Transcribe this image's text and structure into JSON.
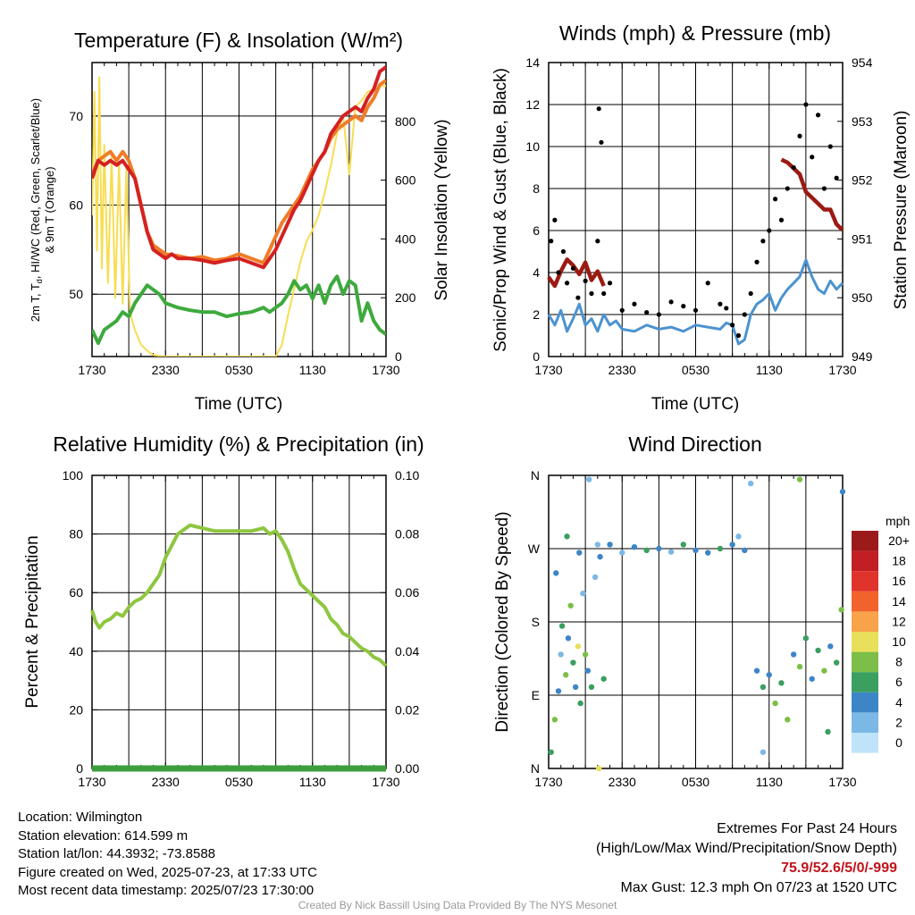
{
  "colors": {
    "temp": "#d42121",
    "dewpoint": "#3daa3d",
    "temp9m": "#f07c28",
    "solar": "#f7dd52",
    "wind": "#4b93d0",
    "gust": "#000000",
    "pressure": "#9b1a12",
    "rh": "#8ec63f",
    "precip": "#3e9e3e"
  },
  "panels": {
    "temp": {
      "title": "Temperature (F) & Insolation (W/m²)",
      "ylabel_left_1": "2m T, T",
      "ylabel_left_sub": "d",
      "ylabel_left_2": ", HI/WC (Red, Green, Scarlet/Blue)",
      "ylabel_left_3": "& 9m T (Orange)",
      "ylabel_right": "Solar Insolation (Yellow)",
      "xlabel": "Time (UTC)",
      "yticks_left": [
        "50",
        "60",
        "70"
      ],
      "yticks_right": [
        "0",
        "200",
        "400",
        "600",
        "800"
      ]
    },
    "wind": {
      "title": "Winds (mph) & Pressure (mb)",
      "ylabel_left": "Sonic/Prop Wind & Gust (Blue, Black)",
      "ylabel_right": "Station Pressure (Maroon)",
      "xlabel": "Time (UTC)",
      "yticks_left": [
        "0",
        "2",
        "4",
        "6",
        "8",
        "10",
        "12",
        "14"
      ],
      "yticks_right": [
        "949",
        "950",
        "951",
        "952",
        "953",
        "954"
      ]
    },
    "rh": {
      "title": "Relative Humidity (%) & Precipitation (in)",
      "ylabel_left": "Percent & Precipitation",
      "yticks_left": [
        "0",
        "20",
        "40",
        "60",
        "80",
        "100"
      ],
      "yticks_right": [
        "0.00",
        "0.02",
        "0.04",
        "0.06",
        "0.08",
        "0.10"
      ]
    },
    "dir": {
      "title": "Wind Direction",
      "ylabel_left": "Direction (Colored By Speed)",
      "yticks_left": [
        "N",
        "E",
        "S",
        "W",
        "N"
      ],
      "legend_title": "mph",
      "legend_labels": [
        "20+",
        "18",
        "16",
        "14",
        "12",
        "10",
        "8",
        "6",
        "4",
        "2",
        "0"
      ],
      "legend_colors": [
        "#9b1a1a",
        "#c21f25",
        "#e0332b",
        "#f1622d",
        "#f8a24a",
        "#e8e05a",
        "#7cbe47",
        "#3a9f5f",
        "#3d85c6",
        "#7cb8e6",
        "#bfe3f8"
      ]
    }
  },
  "xticks": [
    "1730",
    "2330",
    "0530",
    "1130",
    "1730"
  ],
  "info": {
    "location": "Location: Wilmington",
    "elevation": "Station elevation: 614.599 m",
    "latlon": "Station lat/lon: 44.3932; -73.8588",
    "created": "Figure created on Wed, 2025-07-23, at 17:33 UTC",
    "recent": "Most recent data timestamp: 2025/07/23 17:30:00"
  },
  "extremes": {
    "line1": "Extremes For Past 24 Hours",
    "line2": "(High/Low/Max Wind/Precipitation/Snow Depth)",
    "values": "75.9/52.6/5/0/-999",
    "gust": "Max Gust: 12.3 mph On 07/23 at 1520 UTC"
  },
  "credit": "Created By Nick Bassill Using Data Provided By The NYS Mesonet",
  "chart_data": [
    {
      "type": "line",
      "x_unit": "hours since 1730 UTC",
      "xlim": [
        0,
        24
      ],
      "ylim": [
        43,
        76
      ],
      "ylim_right": [
        0,
        1000
      ],
      "series": [
        {
          "key": "temp",
          "x": [
            0,
            0.5,
            1,
            1.5,
            2,
            2.5,
            3,
            3.5,
            4,
            4.5,
            5,
            5.5,
            6,
            6.5,
            7,
            8,
            9,
            10,
            11,
            12,
            13,
            14,
            14.5,
            15,
            15.5,
            16,
            16.5,
            17,
            17.5,
            18,
            18.5,
            19,
            19.5,
            20,
            20.5,
            21,
            21.5,
            22,
            22.5,
            23,
            23.5,
            24
          ],
          "y": [
            63,
            65,
            64.5,
            65,
            64.5,
            65,
            64,
            63,
            60,
            57,
            55,
            54.5,
            54,
            54.5,
            54,
            54,
            53.8,
            53.5,
            53.8,
            54,
            53.5,
            53,
            54,
            55,
            56.5,
            58,
            59.5,
            60.5,
            62,
            63.5,
            65,
            66,
            68,
            69,
            70,
            70.5,
            71,
            70.5,
            72,
            73,
            75,
            75.5
          ]
        },
        {
          "key": "temp9m",
          "x": [
            0,
            0.5,
            1,
            1.5,
            2,
            2.5,
            3,
            3.5,
            4,
            4.5,
            5,
            5.5,
            6,
            7,
            8,
            9,
            10,
            11,
            12,
            13,
            14,
            14.5,
            15,
            15.5,
            16,
            16.5,
            17,
            17.5,
            18,
            18.5,
            19,
            19.5,
            20,
            20.5,
            21,
            21.5,
            22,
            22.5,
            23,
            23.5,
            24
          ],
          "y": [
            63.5,
            65,
            65.5,
            66,
            65,
            66,
            65,
            63,
            60,
            57,
            55.5,
            55,
            54.5,
            54.3,
            54,
            54.2,
            53.8,
            54,
            54.5,
            54,
            53.5,
            55,
            56.5,
            58,
            59,
            60,
            61,
            62.5,
            64,
            65,
            66,
            67.5,
            68.5,
            69,
            69.5,
            70,
            69.5,
            71,
            72,
            73.5,
            74
          ]
        },
        {
          "key": "dewpoint",
          "x": [
            0,
            0.5,
            1,
            1.5,
            2,
            2.5,
            3,
            3.5,
            4,
            4.5,
            5,
            5.5,
            6,
            7,
            8,
            9,
            10,
            11,
            12,
            13,
            14,
            14.5,
            15,
            15.5,
            16,
            16.5,
            17,
            17.5,
            18,
            18.5,
            19,
            19.5,
            20,
            20.5,
            21,
            21.5,
            22,
            22.5,
            23,
            23.5,
            24
          ],
          "y": [
            46,
            44.5,
            46,
            46.5,
            47,
            48,
            47.5,
            49,
            50,
            51,
            50.5,
            50,
            49,
            48.5,
            48.2,
            48,
            48,
            47.5,
            47.8,
            48,
            48.5,
            48,
            48.5,
            49,
            50,
            51.5,
            50.5,
            51,
            49.5,
            51,
            49,
            51,
            52,
            50,
            51.5,
            51,
            47,
            49,
            47,
            46,
            45.5
          ]
        },
        {
          "key": "solar",
          "axis": "right",
          "x": [
            0,
            0.2,
            0.4,
            0.6,
            0.8,
            1,
            1.3,
            1.6,
            1.9,
            2.2,
            2.5,
            2.8,
            3.1,
            3.5,
            4,
            4.5,
            5,
            6,
            7,
            8,
            9,
            10,
            11,
            12,
            13,
            14,
            15,
            15.5,
            16,
            16.5,
            17,
            17.5,
            18,
            18.5,
            19,
            19.5,
            20,
            20.5,
            21,
            21.5,
            22,
            22.5,
            23,
            23.5,
            24
          ],
          "y": [
            480,
            900,
            360,
            950,
            300,
            720,
            250,
            680,
            200,
            660,
            180,
            640,
            150,
            90,
            40,
            20,
            5,
            0,
            0,
            0,
            0,
            0,
            0,
            0,
            0,
            0,
            0,
            40,
            140,
            230,
            320,
            390,
            430,
            480,
            560,
            650,
            760,
            820,
            620,
            850,
            870,
            900,
            910,
            920,
            920
          ]
        }
      ]
    },
    {
      "type": "line",
      "x_unit": "hours since 1730 UTC",
      "xlim": [
        0,
        24
      ],
      "ylim": [
        0,
        14
      ],
      "ylim_right": [
        949,
        954
      ],
      "series": [
        {
          "key": "wind",
          "x": [
            0,
            0.5,
            1,
            1.5,
            2,
            2.5,
            3,
            3.5,
            4,
            4.5,
            5,
            5.5,
            6,
            7,
            8,
            9,
            10,
            11,
            12,
            13,
            14,
            14.5,
            15,
            15.5,
            16,
            16.5,
            17,
            17.5,
            18,
            18.5,
            19,
            19.5,
            20,
            20.5,
            21,
            21.5,
            22,
            22.5,
            23,
            23.5,
            24
          ],
          "y": [
            2,
            1.5,
            2.2,
            1.2,
            1.8,
            2.5,
            1.5,
            1.8,
            1.2,
            2,
            1.5,
            1.7,
            1.3,
            1.2,
            1.5,
            1.3,
            1.4,
            1.2,
            1.5,
            1.4,
            1.3,
            1.6,
            1.5,
            0.6,
            0.8,
            2,
            2.5,
            2.7,
            3,
            2.2,
            2.8,
            3.2,
            3.5,
            3.8,
            4.6,
            3.8,
            3.2,
            3,
            3.6,
            3.2,
            3.5
          ]
        },
        {
          "key": "gust",
          "x": [
            0.2,
            0.5,
            0.8,
            1.2,
            1.5,
            2,
            2.4,
            3,
            3.5,
            4,
            4.1,
            4.3,
            4.5,
            5,
            6,
            7,
            8,
            9,
            10,
            11,
            12,
            13,
            14,
            14.5,
            15,
            15.5,
            16,
            16.5,
            17,
            17.5,
            18,
            18.5,
            19,
            19.5,
            20,
            20.5,
            21,
            21.5,
            22,
            22.5,
            23,
            23.5
          ],
          "y": [
            5.5,
            6.5,
            4,
            5,
            3.5,
            4.2,
            2.8,
            3.6,
            3,
            5.5,
            11.8,
            10.2,
            3,
            3.5,
            2.2,
            2.5,
            2.1,
            2,
            2.6,
            2.4,
            2.2,
            3.5,
            2.5,
            2.3,
            1.5,
            1,
            2,
            3,
            4.5,
            5.5,
            6,
            7.5,
            6.5,
            8,
            9,
            10.5,
            12,
            9.5,
            11.5,
            8,
            10,
            8.5
          ]
        },
        {
          "key": "pressure",
          "axis": "right",
          "x": [
            0,
            0.5,
            1,
            1.5,
            2,
            2.5,
            3,
            3.5,
            4,
            4.5,
            19,
            19.5,
            20,
            20.5,
            21,
            21.5,
            22,
            22.5,
            23,
            23.5,
            24
          ],
          "y": [
            950.35,
            950.2,
            950.45,
            950.65,
            950.55,
            950.4,
            950.6,
            950.3,
            950.45,
            950.2,
            952.35,
            952.3,
            952.2,
            952.1,
            951.8,
            951.7,
            951.6,
            951.5,
            951.5,
            951.25,
            951.15
          ]
        }
      ]
    },
    {
      "type": "line",
      "x_unit": "hours since 1730 UTC",
      "xlim": [
        0,
        24
      ],
      "ylim": [
        0,
        100
      ],
      "ylim_right": [
        0,
        0.1
      ],
      "series": [
        {
          "key": "rh",
          "x": [
            0,
            0.3,
            0.6,
            1,
            1.5,
            2,
            2.5,
            3,
            3.5,
            4,
            4.5,
            5,
            5.5,
            6,
            7,
            8,
            9,
            10,
            11,
            12,
            13,
            14,
            14.5,
            15,
            15.5,
            16,
            16.5,
            17,
            17.5,
            18,
            18.5,
            19,
            19.5,
            20,
            20.5,
            21,
            21.5,
            22,
            22.5,
            23,
            23.5,
            24
          ],
          "y": [
            54,
            50,
            48,
            50,
            51,
            53,
            52,
            55,
            57,
            58,
            60,
            63,
            66,
            72,
            80,
            83,
            82,
            81,
            81,
            81,
            81,
            82,
            80,
            81,
            78,
            74,
            68,
            63,
            61,
            59,
            57,
            55,
            51,
            49,
            46,
            45,
            43,
            41,
            40,
            38,
            37,
            35
          ]
        },
        {
          "key": "precip",
          "axis": "right",
          "x": [
            0,
            24
          ],
          "y": [
            0,
            0
          ]
        }
      ]
    },
    {
      "type": "scatter",
      "x_unit": "hours since 1730 UTC",
      "xlim": [
        0,
        24
      ],
      "ylim_deg": [
        0,
        360
      ],
      "points": [
        {
          "x": 0.2,
          "d": 20,
          "s": 3
        },
        {
          "x": 0.5,
          "d": 60,
          "s": 4
        },
        {
          "x": 0.8,
          "d": 95,
          "s": 2
        },
        {
          "x": 1,
          "d": 140,
          "s": 1
        },
        {
          "x": 1.1,
          "d": 175,
          "s": 3
        },
        {
          "x": 1.4,
          "d": 115,
          "s": 4
        },
        {
          "x": 1.6,
          "d": 160,
          "s": 2
        },
        {
          "x": 1.8,
          "d": 200,
          "s": 4
        },
        {
          "x": 2,
          "d": 130,
          "s": 3
        },
        {
          "x": 2.2,
          "d": 100,
          "s": 2
        },
        {
          "x": 2.4,
          "d": 150,
          "s": 5
        },
        {
          "x": 2.6,
          "d": 80,
          "s": 3
        },
        {
          "x": 2.8,
          "d": 215,
          "s": 1
        },
        {
          "x": 3,
          "d": 140,
          "s": 4
        },
        {
          "x": 3.2,
          "d": 120,
          "s": 2
        },
        {
          "x": 3.5,
          "d": 100,
          "s": 3
        },
        {
          "x": 3.8,
          "d": 235,
          "s": 1
        },
        {
          "x": 4.1,
          "d": 0,
          "s": 5
        },
        {
          "x": 4.2,
          "d": 260,
          "s": 2
        },
        {
          "x": 4.5,
          "d": 110,
          "s": 3
        },
        {
          "x": 1.5,
          "d": 285,
          "s": 3
        },
        {
          "x": 2.5,
          "d": 265,
          "s": 2
        },
        {
          "x": 3.3,
          "d": 355,
          "s": 1
        },
        {
          "x": 4,
          "d": 275,
          "s": 1
        },
        {
          "x": 0.6,
          "d": 240,
          "s": 2
        },
        {
          "x": 5,
          "d": 275,
          "s": 2
        },
        {
          "x": 6,
          "d": 265,
          "s": 1
        },
        {
          "x": 7,
          "d": 272,
          "s": 2
        },
        {
          "x": 8,
          "d": 268,
          "s": 3
        },
        {
          "x": 9,
          "d": 270,
          "s": 2
        },
        {
          "x": 10,
          "d": 266,
          "s": 1
        },
        {
          "x": 11,
          "d": 275,
          "s": 3
        },
        {
          "x": 12,
          "d": 268,
          "s": 2
        },
        {
          "x": 13,
          "d": 265,
          "s": 2
        },
        {
          "x": 14,
          "d": 270,
          "s": 3
        },
        {
          "x": 15,
          "d": 275,
          "s": 2
        },
        {
          "x": 15.5,
          "d": 285,
          "s": 1
        },
        {
          "x": 16,
          "d": 268,
          "s": 2
        },
        {
          "x": 16.5,
          "d": 350,
          "s": 1
        },
        {
          "x": 17,
          "d": 120,
          "s": 2
        },
        {
          "x": 17.5,
          "d": 100,
          "s": 3
        },
        {
          "x": 18,
          "d": 115,
          "s": 2
        },
        {
          "x": 18.5,
          "d": 80,
          "s": 4
        },
        {
          "x": 19,
          "d": 105,
          "s": 3
        },
        {
          "x": 19.5,
          "d": 60,
          "s": 4
        },
        {
          "x": 20,
          "d": 140,
          "s": 2
        },
        {
          "x": 20.5,
          "d": 125,
          "s": 4
        },
        {
          "x": 21,
          "d": 160,
          "s": 3
        },
        {
          "x": 21.5,
          "d": 110,
          "s": 2
        },
        {
          "x": 22,
          "d": 145,
          "s": 3
        },
        {
          "x": 22.5,
          "d": 120,
          "s": 4
        },
        {
          "x": 23,
          "d": 150,
          "s": 2
        },
        {
          "x": 23.5,
          "d": 130,
          "s": 3
        },
        {
          "x": 24,
          "d": 340,
          "s": 2
        },
        {
          "x": 20.5,
          "d": 355,
          "s": 4
        },
        {
          "x": 17.5,
          "d": 20,
          "s": 1
        },
        {
          "x": 22.8,
          "d": 45,
          "s": 3
        },
        {
          "x": 23.9,
          "d": 195,
          "s": 4
        }
      ]
    }
  ]
}
